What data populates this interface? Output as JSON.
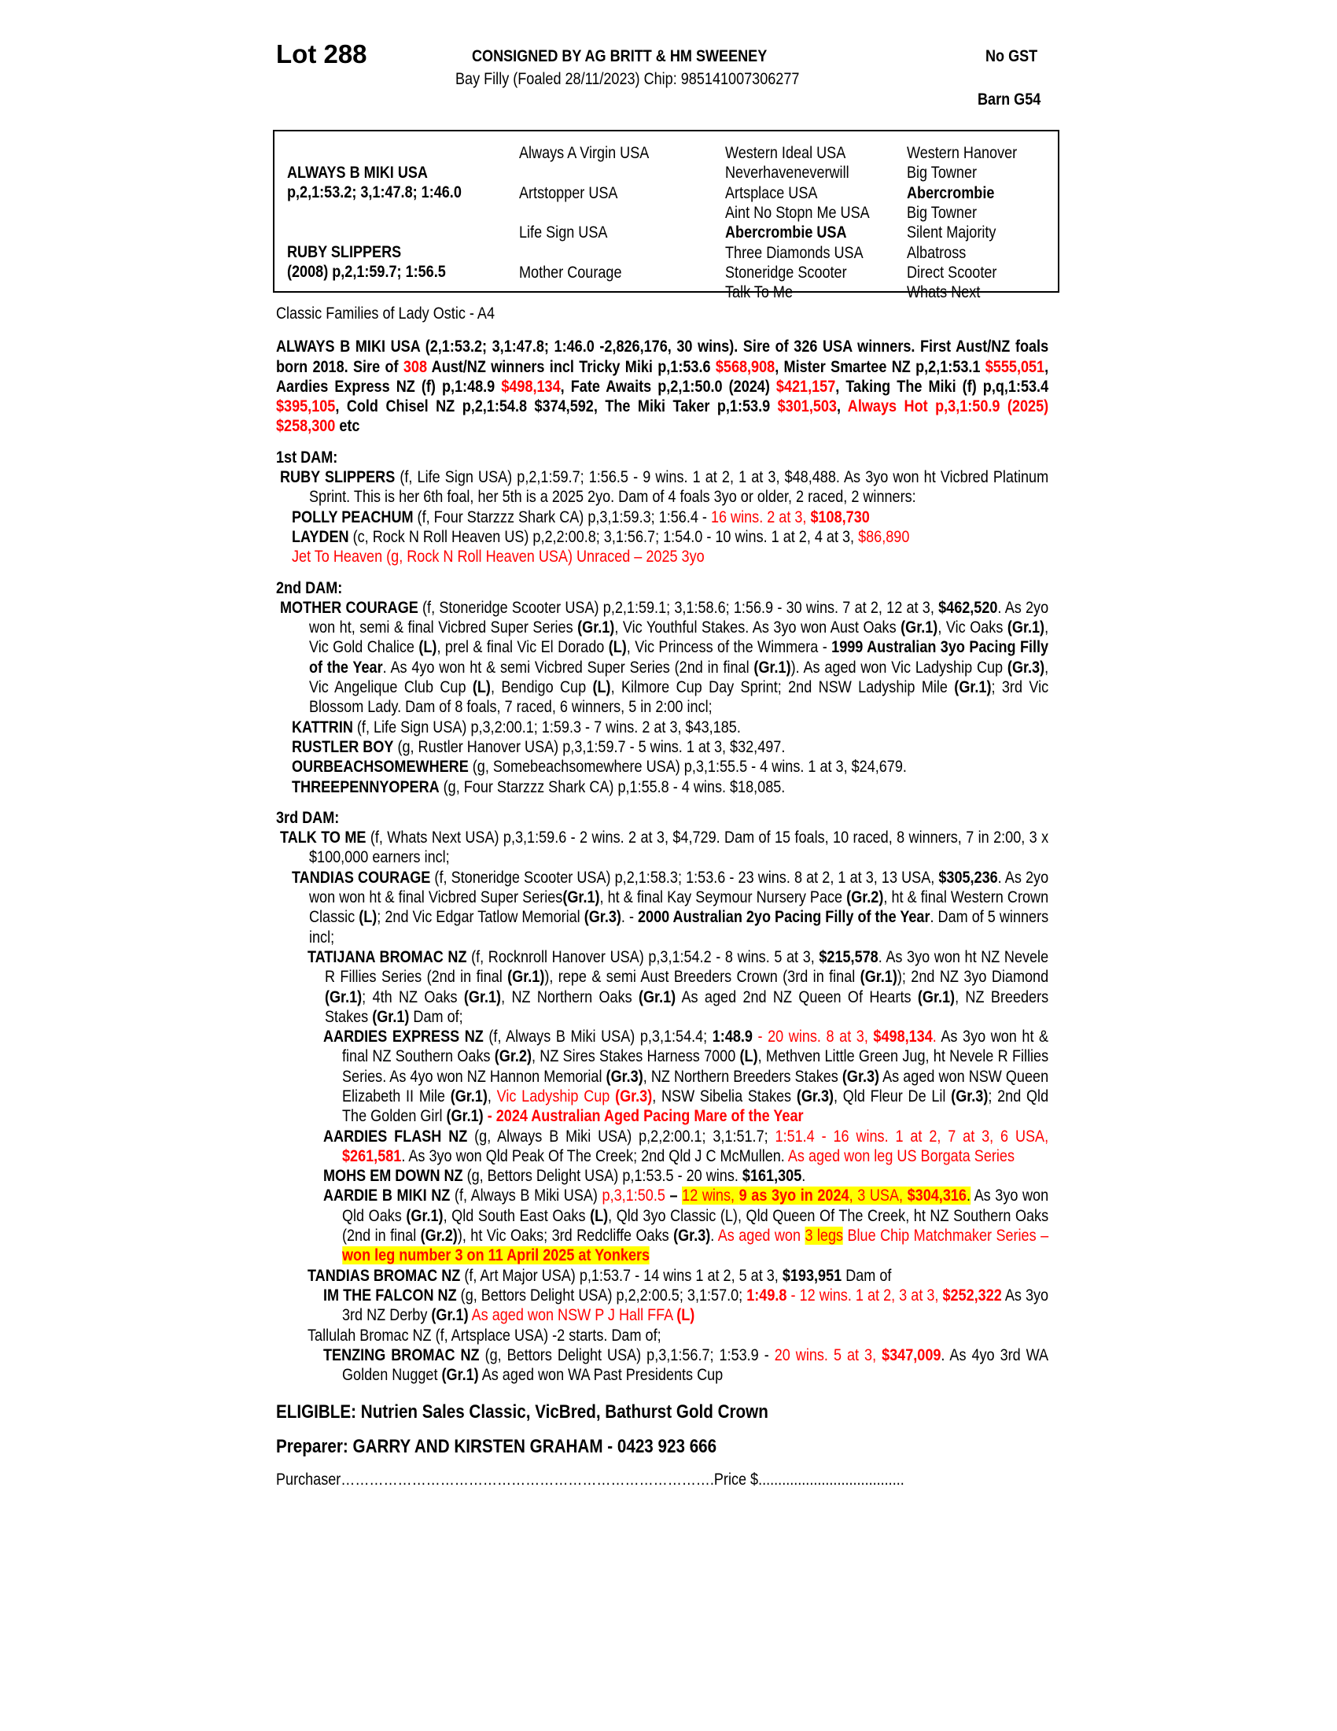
{
  "header": {
    "lot": "Lot 288",
    "consigned": "CONSIGNED BY AG BRITT & HM SWEENEY",
    "gst": "No GST",
    "description": "Bay Filly (Foaled 28/11/2023) Chip: 985141007306277",
    "barn": "Barn G54"
  },
  "pedigree": {
    "sire_name": "ALWAYS B MIKI USA",
    "sire_record": "p,2,1:53.2; 3,1:47.8; 1:46.0",
    "dam_name": "RUBY SLIPPERS",
    "dam_record": "(2008) p,2,1:59.7; 1:56.5",
    "gen2": [
      "Always A Virgin USA",
      "Artstopper USA",
      "Life Sign USA",
      "Mother Courage"
    ],
    "gen3": [
      {
        "name": "Western Ideal USA",
        "bold": false
      },
      {
        "name": "Neverhaveneverwill",
        "bold": false
      },
      {
        "name": "Artsplace USA",
        "bold": false
      },
      {
        "name": "Aint No Stopn Me USA",
        "bold": false
      },
      {
        "name": "Abercrombie USA",
        "bold": true
      },
      {
        "name": "Three Diamonds USA",
        "bold": false
      },
      {
        "name": "Stoneridge Scooter",
        "bold": false
      },
      {
        "name": "Talk To Me",
        "bold": false
      }
    ],
    "gen4": [
      {
        "name": "Western Hanover",
        "bold": false
      },
      {
        "name": "Big Towner",
        "bold": false
      },
      {
        "name": "Abercrombie",
        "bold": true
      },
      {
        "name": "Big Towner",
        "bold": false
      },
      {
        "name": "Silent Majority",
        "bold": false
      },
      {
        "name": "Albatross",
        "bold": false
      },
      {
        "name": "Direct Scooter",
        "bold": false
      },
      {
        "name": "Whats Next",
        "bold": false
      }
    ]
  },
  "family": "Classic Families of Lady Ostic - A4",
  "colors": {
    "red": "#ff0000",
    "highlight": "#ffff00"
  },
  "sire_paragraph": [
    [
      "b",
      "ALWAYS B MIKI USA (2,1:53.2; 3,1:47.8; 1:46.0 -2,826,176, 30 wins). Sire of 326 USA winners. First Aust/NZ foals born 2018. Sire of "
    ],
    [
      "rb",
      "308"
    ],
    [
      "b",
      " Aust/NZ winners incl Tricky Miki p,1:53.6 "
    ],
    [
      "rb",
      "$568,908"
    ],
    [
      "b",
      ", Mister Smartee NZ p,2,1:53.1 "
    ],
    [
      "rb",
      "$555,051"
    ],
    [
      "b",
      ", Aardies Express NZ (f) p,1:48.9 "
    ],
    [
      "rb",
      "$498,134"
    ],
    [
      "b",
      ", Fate Awaits p,2,1:50.0 (2024) "
    ],
    [
      "rb",
      "$421,157"
    ],
    [
      "b",
      ", Taking The Miki (f) p,q,1:53.4 "
    ],
    [
      "rb",
      "$395,105"
    ],
    [
      "b",
      ", Cold Chisel NZ p,2,1:54.8 $374,592, The Miki Taker p,1:53.9 "
    ],
    [
      "rb",
      "$301,503"
    ],
    [
      "b",
      ", "
    ],
    [
      "rb",
      "Always Hot p,3,1:50.9 (2025) $258,300"
    ],
    [
      "b",
      " etc"
    ]
  ],
  "sections": [
    {
      "title": "1st DAM:",
      "entries": [
        {
          "level": 0,
          "segs": [
            [
              "b",
              "RUBY SLIPPERS"
            ],
            [
              "n",
              " (f, Life Sign USA) p,2,1:59.7; 1:56.5 - 9 wins. 1 at 2, 1 at 3, $48,488. As 3yo won ht Vicbred Platinum Sprint. This is her 6th foal, her 5th is a 2025 2yo. Dam of 4 foals 3yo or older, 2 raced, 2 winners:"
            ]
          ]
        },
        {
          "level": 1,
          "segs": [
            [
              "b",
              "POLLY PEACHUM"
            ],
            [
              "n",
              " (f, Four Starzzz Shark CA) p,3,1:59.3; 1:56.4 - "
            ],
            [
              "r",
              "16 wins. 2 at 3, "
            ],
            [
              "rb",
              "$108,730"
            ]
          ]
        },
        {
          "level": 1,
          "segs": [
            [
              "b",
              "LAYDEN"
            ],
            [
              "n",
              " (c, Rock N Roll Heaven US) p,2,2:00.8; 3,1:56.7; 1:54.0 - 10 wins. 1 at 2, 4 at 3, "
            ],
            [
              "r",
              "$86,890"
            ]
          ]
        },
        {
          "level": 1,
          "segs": [
            [
              "r",
              "Jet To Heaven (g, Rock N Roll Heaven USA) Unraced – 2025 3yo"
            ]
          ]
        }
      ]
    },
    {
      "title": "2nd DAM:",
      "entries": [
        {
          "level": 0,
          "segs": [
            [
              "b",
              "MOTHER COURAGE"
            ],
            [
              "n",
              " (f, Stoneridge Scooter USA) p,2,1:59.1; 3,1:58.6; 1:56.9 - 30 wins. 7 at 2, 12 at 3, "
            ],
            [
              "b",
              "$462,520"
            ],
            [
              "n",
              ". As 2yo won ht, semi & final Vicbred Super Series "
            ],
            [
              "b",
              "(Gr.1)"
            ],
            [
              "n",
              ", Vic Youthful Stakes. As 3yo won Aust Oaks "
            ],
            [
              "b",
              "(Gr.1)"
            ],
            [
              "n",
              ", Vic Oaks "
            ],
            [
              "b",
              "(Gr.1)"
            ],
            [
              "n",
              ", Vic Gold Chalice "
            ],
            [
              "b",
              "(L)"
            ],
            [
              "n",
              ", prel & final Vic El Dorado "
            ],
            [
              "b",
              "(L)"
            ],
            [
              "n",
              ", Vic Princess of the Wimmera - "
            ],
            [
              "b",
              "1999 Australian 3yo Pacing Filly of the Year"
            ],
            [
              "n",
              ". As 4yo won ht & semi Vicbred Super Series (2nd in final "
            ],
            [
              "b",
              "(Gr.1)"
            ],
            [
              "n",
              "). As aged won Vic Ladyship Cup "
            ],
            [
              "b",
              "(Gr.3)"
            ],
            [
              "n",
              ", Vic Angelique Club Cup "
            ],
            [
              "b",
              "(L)"
            ],
            [
              "n",
              ", Bendigo Cup "
            ],
            [
              "b",
              "(L)"
            ],
            [
              "n",
              ", Kilmore Cup Day Sprint; 2nd NSW Ladyship Mile "
            ],
            [
              "b",
              "(Gr.1)"
            ],
            [
              "n",
              "; 3rd Vic Blossom Lady. Dam of 8 foals, 7 raced, 6 winners, 5 in 2:00 incl;"
            ]
          ]
        },
        {
          "level": 1,
          "segs": [
            [
              "b",
              "KATTRIN"
            ],
            [
              "n",
              " (f, Life Sign USA) p,3,2:00.1; 1:59.3 - 7 wins. 2 at 3, $43,185."
            ]
          ]
        },
        {
          "level": 1,
          "segs": [
            [
              "b",
              "RUSTLER BOY"
            ],
            [
              "n",
              " (g, Rustler Hanover USA) p,3,1:59.7 - 5 wins. 1 at 3, $32,497."
            ]
          ]
        },
        {
          "level": 1,
          "segs": [
            [
              "b",
              "OURBEACHSOMEWHERE"
            ],
            [
              "n",
              " (g, Somebeachsomewhere USA) p,3,1:55.5 - 4 wins. 1 at 3, $24,679."
            ]
          ]
        },
        {
          "level": 1,
          "segs": [
            [
              "b",
              "THREEPENNYOPERA"
            ],
            [
              "n",
              " (g, Four Starzzz Shark CA) p,1:55.8 - 4 wins. $18,085."
            ]
          ]
        }
      ]
    },
    {
      "title": "3rd DAM:",
      "entries": [
        {
          "level": 0,
          "segs": [
            [
              "b",
              "TALK TO ME"
            ],
            [
              "n",
              " (f, Whats Next USA) p,3,1:59.6 - 2 wins. 2 at 3, $4,729. Dam of 15 foals, 10 raced, 8 winners, 7 in 2:00, 3 x $100,000 earners incl;"
            ]
          ]
        },
        {
          "level": 1,
          "segs": [
            [
              "b",
              "TANDIAS COURAGE"
            ],
            [
              "n",
              " (f, Stoneridge Scooter USA) p,2,1:58.3; 1:53.6 - 23 wins. 8 at 2, 1 at 3, 13 USA, "
            ],
            [
              "b",
              "$305,236"
            ],
            [
              "n",
              ". As 2yo won won ht & final Vicbred Super Series"
            ],
            [
              "b",
              "(Gr.1)"
            ],
            [
              "n",
              ", ht & final Kay Seymour Nursery Pace "
            ],
            [
              "b",
              "(Gr.2)"
            ],
            [
              "n",
              ", ht & final Western Crown Classic "
            ],
            [
              "b",
              "(L)"
            ],
            [
              "n",
              "; 2nd Vic Edgar Tatlow Memorial "
            ],
            [
              "b",
              "(Gr.3)"
            ],
            [
              "n",
              ". - "
            ],
            [
              "b",
              "2000 Australian 2yo Pacing Filly of the Year"
            ],
            [
              "n",
              ". Dam of 5 winners incl;"
            ]
          ]
        },
        {
          "level": 2,
          "segs": [
            [
              "b",
              "TATIJANA BROMAC NZ"
            ],
            [
              "n",
              " (f, Rocknroll Hanover USA) p,3,1:54.2 - 8 wins. 5 at 3, "
            ],
            [
              "b",
              "$215,578"
            ],
            [
              "n",
              ". As 3yo won ht NZ Nevele R Fillies Series (2nd in final "
            ],
            [
              "b",
              "(Gr.1)"
            ],
            [
              "n",
              "), repe & semi Aust Breeders Crown (3rd in final "
            ],
            [
              "b",
              "(Gr.1)"
            ],
            [
              "n",
              "); 2nd NZ 3yo Diamond "
            ],
            [
              "b",
              "(Gr.1)"
            ],
            [
              "n",
              "; 4th NZ Oaks "
            ],
            [
              "b",
              "(Gr.1)"
            ],
            [
              "n",
              ", NZ Northern Oaks "
            ],
            [
              "b",
              "(Gr.1)"
            ],
            [
              "n",
              " As aged 2nd NZ Queen Of Hearts "
            ],
            [
              "b",
              "(Gr.1)"
            ],
            [
              "n",
              ", NZ Breeders Stakes "
            ],
            [
              "b",
              "(Gr.1)"
            ],
            [
              "n",
              " Dam of;"
            ]
          ]
        },
        {
          "level": 3,
          "segs": [
            [
              "b",
              "AARDIES EXPRESS NZ"
            ],
            [
              "n",
              " (f, Always B Miki USA) p,3,1:54.4; "
            ],
            [
              "b",
              "1:48.9"
            ],
            [
              "r",
              " - 20 wins. 8 at 3, "
            ],
            [
              "rb",
              "$498,134"
            ],
            [
              "r",
              "."
            ],
            [
              "n",
              " As 3yo won ht & final NZ Southern Oaks "
            ],
            [
              "b",
              "(Gr.2)"
            ],
            [
              "n",
              ", NZ Sires Stakes Harness 7000 "
            ],
            [
              "b",
              "(L)"
            ],
            [
              "n",
              ", Methven Little Green Jug, ht Nevele R Fillies Series. As 4yo won NZ Hannon Memorial "
            ],
            [
              "b",
              "(Gr.3)"
            ],
            [
              "n",
              ", NZ Northern Breeders Stakes "
            ],
            [
              "b",
              "(Gr.3)"
            ],
            [
              "n",
              " As aged won NSW Queen Elizabeth II Mile "
            ],
            [
              "b",
              "(Gr.1)"
            ],
            [
              "n",
              ", "
            ],
            [
              "r",
              "Vic Ladyship Cup "
            ],
            [
              "rb",
              "(Gr.3)"
            ],
            [
              "n",
              ", NSW Sibelia Stakes "
            ],
            [
              "b",
              "(Gr.3)"
            ],
            [
              "n",
              ", Qld Fleur De Lil "
            ],
            [
              "b",
              "(Gr.3)"
            ],
            [
              "n",
              "; 2nd Qld The Golden Girl "
            ],
            [
              "b",
              "(Gr.1)"
            ],
            [
              "rb",
              " - 2024 Australian Aged Pacing Mare of the Year"
            ]
          ]
        },
        {
          "level": 3,
          "segs": [
            [
              "b",
              "AARDIES FLASH NZ"
            ],
            [
              "n",
              " (g, Always B Miki USA) p,2,2:00.1; 3,1:51.7; "
            ],
            [
              "r",
              "1:51.4 - 16 wins. 1 at 2, 7 at 3, 6 USA, "
            ],
            [
              "rb",
              "$261,581"
            ],
            [
              "n",
              ". As 3yo won Qld Peak Of The Creek; 2nd Qld J C McMullen. "
            ],
            [
              "r",
              "As aged won leg US Borgata Series"
            ]
          ]
        },
        {
          "level": 3,
          "segs": [
            [
              "b",
              "MOHS EM DOWN NZ"
            ],
            [
              "n",
              " (g, Bettors Delight USA) p,1:53.5 - 20 wins. "
            ],
            [
              "b",
              "$161,305"
            ],
            [
              "n",
              "."
            ]
          ]
        },
        {
          "level": 3,
          "segs": [
            [
              "b",
              "AARDIE B MIKI NZ"
            ],
            [
              "n",
              " (f, Always B Miki USA) "
            ],
            [
              "r",
              "p,3,1:50.5"
            ],
            [
              "b",
              " – "
            ],
            [
              "yr",
              "12 wins, "
            ],
            [
              "yrb",
              "9 as 3yo in 2024"
            ],
            [
              "yr",
              ", 3 USA, "
            ],
            [
              "yrb",
              "$304,316"
            ],
            [
              "y",
              "."
            ],
            [
              "n",
              " As 3yo won Qld Oaks "
            ],
            [
              "b",
              "(Gr.1)"
            ],
            [
              "n",
              ", Qld South East Oaks "
            ],
            [
              "b",
              "(L)"
            ],
            [
              "n",
              ", Qld 3yo Classic (L), Qld Queen Of The Creek, ht NZ Southern Oaks (2nd in final "
            ],
            [
              "b",
              "(Gr.2)"
            ],
            [
              "n",
              "), ht Vic Oaks; 3rd Redcliffe Oaks "
            ],
            [
              "b",
              "(Gr.3)"
            ],
            [
              "n",
              ". "
            ],
            [
              "r",
              "As aged won "
            ],
            [
              "yr",
              "3 legs"
            ],
            [
              "r",
              " Blue Chip Matchmaker Series – "
            ],
            [
              "yrb",
              "won leg number 3 on 11 April 2025 at Yonkers"
            ]
          ]
        },
        {
          "level": 2,
          "segs": [
            [
              "b",
              "TANDIAS BROMAC NZ"
            ],
            [
              "n",
              " (f, Art Major USA) p,1:53.7 - 14 wins 1 at 2, 5 at 3, "
            ],
            [
              "b",
              "$193,951"
            ],
            [
              "n",
              " Dam of"
            ]
          ]
        },
        {
          "level": 3,
          "segs": [
            [
              "b",
              "IM THE FALCON NZ"
            ],
            [
              "n",
              " (g, Bettors Delight USA) p,2,2:00.5; 3,1:57.0; "
            ],
            [
              "rb",
              "1:49.8"
            ],
            [
              "r",
              " - 12 wins. 1 at 2, 3 at 3, "
            ],
            [
              "rb",
              "$252,322"
            ],
            [
              "n",
              " As 3yo 3rd NZ Derby "
            ],
            [
              "b",
              "(Gr.1)"
            ],
            [
              "r",
              " As aged won NSW P J Hall FFA "
            ],
            [
              "rb",
              "(L)"
            ]
          ]
        },
        {
          "level": 2,
          "segs": [
            [
              "n",
              "Tallulah Bromac NZ (f, Artsplace USA) -2 starts. Dam of;"
            ]
          ]
        },
        {
          "level": 3,
          "segs": [
            [
              "b",
              "TENZING BROMAC NZ"
            ],
            [
              "n",
              " (g, Bettors Delight USA) p,3,1:56.7; 1:53.9 - "
            ],
            [
              "r",
              "20 wins. 5 at 3, "
            ],
            [
              "rb",
              "$347,009"
            ],
            [
              "n",
              ". As 4yo 3rd WA Golden Nugget "
            ],
            [
              "b",
              "(Gr.1)"
            ],
            [
              "n",
              " As aged won WA Past Presidents Cup"
            ]
          ]
        }
      ]
    }
  ],
  "footer": {
    "eligible": "ELIGIBLE: Nutrien Sales Classic, VicBred, Bathurst Gold Crown",
    "preparer": "Preparer: GARRY AND KIRSTEN GRAHAM - 0423 923 666",
    "purchaser": "Purchaser…………………………………………………………………….Price $....................................."
  }
}
